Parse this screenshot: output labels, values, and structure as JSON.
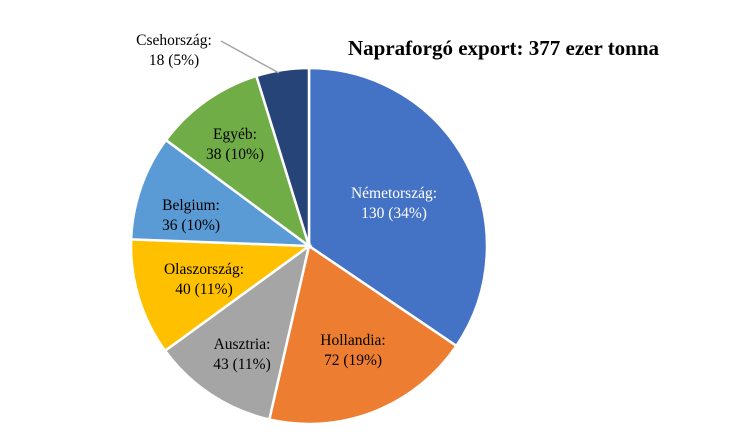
{
  "chart_data": {
    "type": "pie",
    "title": "Napraforgó export: 377 ezer tonna",
    "slices": [
      {
        "name": "Németország",
        "value": 130,
        "percent": "34%",
        "color": "#4472C4",
        "label_color": "#ffffff"
      },
      {
        "name": "Hollandia",
        "value": 72,
        "percent": "19%",
        "color": "#ED7D31",
        "label_color": "#000000"
      },
      {
        "name": "Ausztria",
        "value": 43,
        "percent": "11%",
        "color": "#A5A5A5",
        "label_color": "#000000"
      },
      {
        "name": "Olaszország",
        "value": 40,
        "percent": "11%",
        "color": "#FFC000",
        "label_color": "#000000"
      },
      {
        "name": "Belgium",
        "value": 36,
        "percent": "10%",
        "color": "#5B9BD5",
        "label_color": "#000000"
      },
      {
        "name": "Egyéb",
        "value": 38,
        "percent": "10%",
        "color": "#70AD47",
        "label_color": "#000000"
      },
      {
        "name": "Csehország",
        "value": 18,
        "percent": "5%",
        "color": "#264478",
        "label_color": "#000000"
      }
    ],
    "legend": "none"
  }
}
